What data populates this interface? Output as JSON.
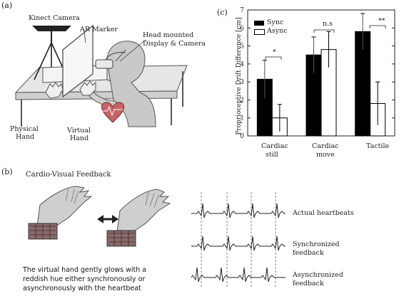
{
  "panel_a": {
    "label": "(a)",
    "kinect_camera": "Kinect Camera",
    "ar_marker": "AR Marker",
    "hmd_line1": "Head mounted",
    "hmd_line2": "Display & Camera",
    "physical_line1": "Physical",
    "physical_line2": "Hand",
    "virtual_line1": "Virtual",
    "virtual_line2": "Hand"
  },
  "panel_b": {
    "label": "(b)",
    "title": "Cardio-Visual Feedback",
    "caption_line1": "The virtual hand gently glows with a",
    "caption_line2": "reddish hue either synchronously or",
    "caption_line3": "asynchronously with the heartbeat",
    "actual": "Actual heartbeats",
    "sync_line1": "Synchronized",
    "sync_line2": "feedback",
    "async_line1": "Asynchronized",
    "async_line2": "feedback"
  },
  "panel_c": {
    "label": "(c)",
    "sig_labels": [
      "*",
      "n.s",
      "**"
    ]
  },
  "chart_data": {
    "type": "bar",
    "categories": [
      "Cardiac still",
      "Cardiac move",
      "Tactile"
    ],
    "category_lines": [
      [
        "Cardiac",
        "still"
      ],
      [
        "Cardiac",
        "move"
      ],
      [
        "Tactile",
        ""
      ]
    ],
    "series": [
      {
        "name": "Sync",
        "values": [
          3.15,
          4.5,
          5.8
        ],
        "errors": [
          1.05,
          1.0,
          1.0
        ],
        "color": "#000000"
      },
      {
        "name": "Async",
        "values": [
          1.0,
          4.8,
          1.8
        ],
        "errors": [
          0.75,
          1.0,
          1.2
        ],
        "color": "#ffffff"
      }
    ],
    "ylabel": "Proprioceptive Drift Difference [cm]",
    "ylim": [
      0,
      7
    ],
    "yticks": [
      "0",
      "1",
      "2",
      "3",
      "4",
      "5",
      "6",
      "7"
    ],
    "legend_position": "top-left",
    "grid": false
  }
}
